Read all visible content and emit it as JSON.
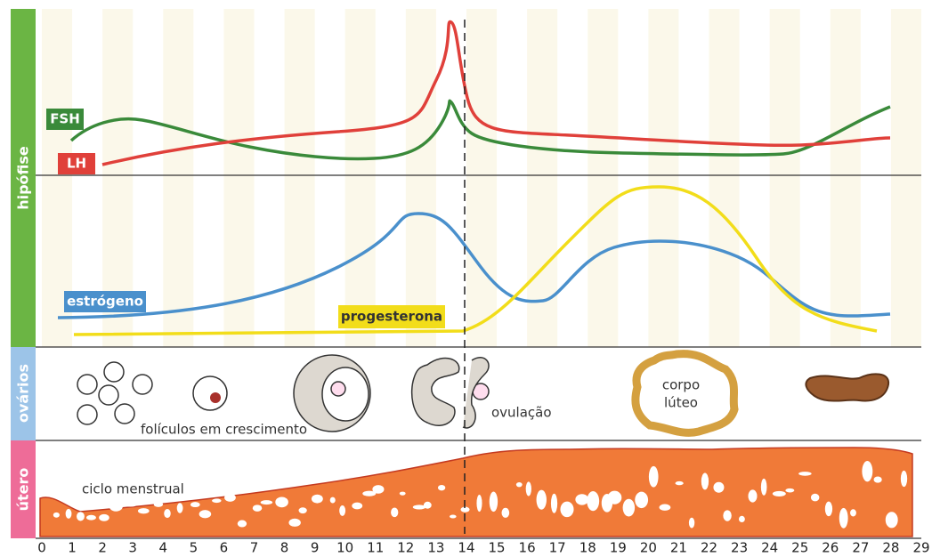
{
  "side_labels": {
    "pituitary": "hipófise",
    "ovaries": "ovários",
    "uterus": "útero"
  },
  "hormones": {
    "fsh": "FSH",
    "lh": "LH",
    "estrogen": "estrógeno",
    "progesterone": "progesterona"
  },
  "ovary_labels": {
    "follicles": "folículos em crescimento",
    "ovulation": "ovulação",
    "corpus_luteum": [
      "corpo",
      "lúteo"
    ]
  },
  "uterus_label": "ciclo menstrual",
  "days": [
    0,
    1,
    2,
    3,
    4,
    5,
    6,
    7,
    8,
    9,
    10,
    11,
    12,
    13,
    14,
    15,
    16,
    17,
    18,
    19,
    20,
    21,
    22,
    23,
    24,
    25,
    26,
    27,
    28,
    29
  ]
}
